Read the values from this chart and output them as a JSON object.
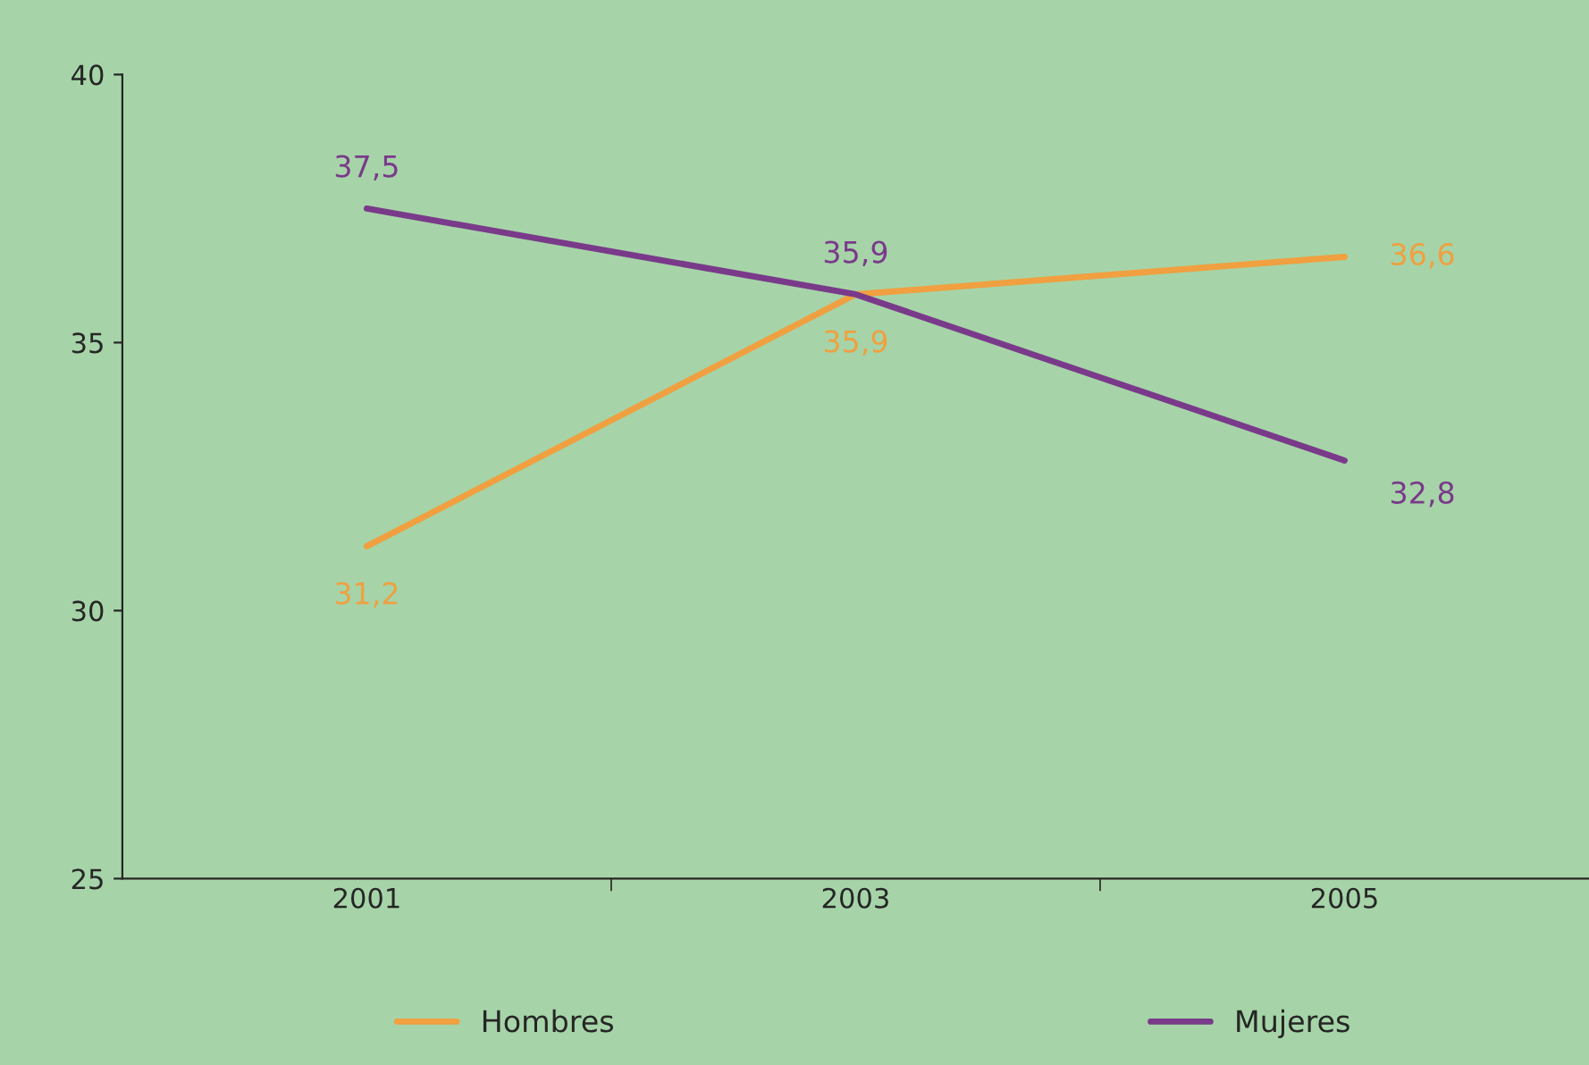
{
  "chart_data": {
    "type": "line",
    "categories": [
      "2001",
      "2003",
      "2005"
    ],
    "series": [
      {
        "name": "Hombres",
        "color": "#f0a040",
        "values": [
          31.2,
          35.9,
          36.6
        ],
        "value_labels": [
          "31,2",
          "35,9",
          "36,6"
        ]
      },
      {
        "name": "Mujeres",
        "color": "#7a3a8a",
        "values": [
          37.5,
          35.9,
          32.8
        ],
        "value_labels": [
          "37,5",
          "35,9",
          "32,8"
        ]
      }
    ],
    "ylim": [
      25,
      40
    ],
    "yticks": [
      25,
      30,
      35,
      40
    ],
    "legend": "bottom",
    "grid": false,
    "marker": "none",
    "line_style": "solid"
  }
}
